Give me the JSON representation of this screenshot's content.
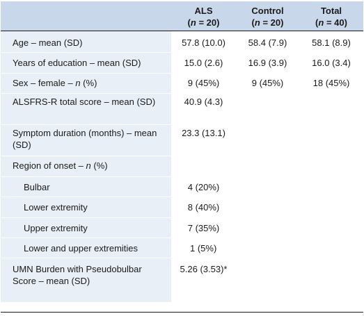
{
  "table": {
    "header": {
      "col0": "",
      "als": {
        "name": "ALS",
        "n_prefix": "(",
        "n_var": "n",
        "n_rest": " = 20)"
      },
      "control": {
        "name": "Control",
        "n_prefix": "(",
        "n_var": "n",
        "n_rest": " = 20)"
      },
      "total": {
        "name": "Total",
        "n_prefix": "(",
        "n_var": "n",
        "n_rest": " = 40)"
      }
    },
    "rows": [
      {
        "label": "Age – mean (SD)",
        "als": "57.8 (10.0)",
        "control": "58.4 (7.9)",
        "total": "58.1 (8.9)"
      },
      {
        "label": "Years of education – mean (SD)",
        "als": "15.0 (2.6)",
        "control": "16.9 (3.9)",
        "total": "16.0 (3.4)"
      },
      {
        "label_pre": "Sex – female – ",
        "label_var": "n",
        "label_post": " (%)",
        "als": "9 (45%)",
        "control": "9 (45%)",
        "total": "18 (45%)"
      },
      {
        "label": "ALSFRS-R total score – mean (SD)",
        "als": "40.9 (4.3)",
        "control": "",
        "total": ""
      },
      {
        "label": "Symptom duration (months) – mean (SD)",
        "als": "23.3 (13.1)",
        "control": "",
        "total": ""
      },
      {
        "label_pre": "Region of onset – ",
        "label_var": "n",
        "label_post": " (%)",
        "als": "",
        "control": "",
        "total": ""
      },
      {
        "label": "Bulbar",
        "als": "4 (20%)",
        "control": "",
        "total": ""
      },
      {
        "label": "Lower extremity",
        "als": "8 (40%)",
        "control": "",
        "total": ""
      },
      {
        "label": "Upper extremity",
        "als": "7 (35%)",
        "control": "",
        "total": ""
      },
      {
        "label": "Lower and upper extremities",
        "als": "1 (5%)",
        "control": "",
        "total": ""
      },
      {
        "label": "UMN Burden with Pseudobulbar Score – mean (SD)",
        "als": "5.26 (3.53)*",
        "control": "",
        "total": ""
      }
    ]
  },
  "colors": {
    "header_bg": "#c8d8ea",
    "label_bg": "#e9eff7",
    "rule": "#1a1a1a"
  }
}
